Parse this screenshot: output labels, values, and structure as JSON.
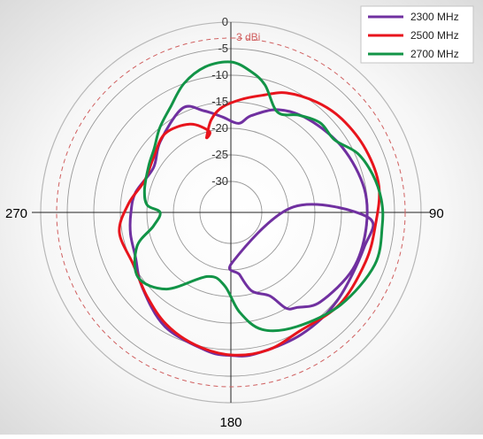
{
  "chart_data": {
    "type": "polar-line",
    "radial_unit": "dBi",
    "radial_range": [
      -30,
      0
    ],
    "radial_ticks": [
      "0",
      "-5",
      "-10",
      "-15",
      "-20",
      "-25",
      "-30"
    ],
    "angle_labels": {
      "top": "",
      "right": "90",
      "bottom": "180",
      "left": "270"
    },
    "reference_circle": {
      "value": -3,
      "label": "-3 dBi",
      "color": "#d06060"
    },
    "legend": {
      "placement": "top-right"
    },
    "grid": true,
    "series": [
      {
        "name": "2300 MHz",
        "color": "#7030a0",
        "points": [
          [
            178,
            -26.5
          ],
          [
            172,
            -24
          ],
          [
            165,
            -20.5
          ],
          [
            155,
            -18.5
          ],
          [
            150,
            -15
          ],
          [
            145,
            -14
          ],
          [
            135,
            -12
          ],
          [
            115,
            -10.5
          ],
          [
            97,
            -10.2
          ],
          [
            80,
            -10.3
          ],
          [
            60,
            -11.5
          ],
          [
            40,
            -13
          ],
          [
            25,
            -14.5
          ],
          [
            12,
            -17.2
          ],
          [
            5,
            -19
          ],
          [
            -5,
            -17.8
          ],
          [
            -15,
            -16
          ],
          [
            -25,
            -14.2
          ],
          [
            -45,
            -17
          ],
          [
            -60,
            -19
          ],
          [
            -78,
            -17.5
          ],
          [
            -90,
            -17
          ],
          [
            -102,
            -16.5
          ],
          [
            -115,
            -16
          ],
          [
            -130,
            -14
          ],
          [
            -150,
            -11
          ],
          [
            -170,
            -9.4
          ],
          [
            -180,
            -8.9
          ],
          [
            170,
            -8.8
          ],
          [
            150,
            -9.3
          ],
          [
            130,
            -9.8
          ],
          [
            105,
            -9.9
          ],
          [
            92,
            -10
          ],
          [
            85,
            -24
          ],
          [
            178,
            -26.5
          ]
        ]
      },
      {
        "name": "2500 MHz",
        "color": "#e8141c",
        "points": [
          [
            -15,
            -20
          ],
          [
            -25,
            -17.5
          ],
          [
            -40,
            -16.5
          ],
          [
            -55,
            -18
          ],
          [
            -70,
            -18.5
          ],
          [
            -85,
            -16.5
          ],
          [
            -100,
            -14.5
          ],
          [
            -118,
            -15
          ],
          [
            -135,
            -13.5
          ],
          [
            -150,
            -11.5
          ],
          [
            -165,
            -10
          ],
          [
            -180,
            -9
          ],
          [
            165,
            -9
          ],
          [
            150,
            -10
          ],
          [
            130,
            -9
          ],
          [
            110,
            -8.8
          ],
          [
            95,
            -8.5
          ],
          [
            80,
            -7.5
          ],
          [
            65,
            -7.8
          ],
          [
            50,
            -8.5
          ],
          [
            38,
            -9.5
          ],
          [
            25,
            -11
          ],
          [
            15,
            -13
          ],
          [
            5,
            -14.5
          ],
          [
            -5,
            -16
          ],
          [
            -12,
            -18
          ],
          [
            -18,
            -21
          ],
          [
            -15,
            -20
          ]
        ]
      },
      {
        "name": "2700 MHz",
        "color": "#129447",
        "points": [
          [
            0,
            -7.5
          ],
          [
            -10,
            -8
          ],
          [
            -20,
            -10
          ],
          [
            -30,
            -13
          ],
          [
            -40,
            -15
          ],
          [
            -50,
            -17
          ],
          [
            -60,
            -18
          ],
          [
            -75,
            -19
          ],
          [
            -85,
            -20
          ],
          [
            -90,
            -22.5
          ],
          [
            -100,
            -21
          ],
          [
            -110,
            -17
          ],
          [
            -125,
            -14.5
          ],
          [
            -140,
            -17
          ],
          [
            -160,
            -23
          ],
          [
            -175,
            -22
          ],
          [
            175,
            -17
          ],
          [
            165,
            -13
          ],
          [
            150,
            -11
          ],
          [
            130,
            -8.8
          ],
          [
            110,
            -7
          ],
          [
            95,
            -7.2
          ],
          [
            85,
            -7.4
          ],
          [
            75,
            -8.2
          ],
          [
            65,
            -9.5
          ],
          [
            55,
            -12
          ],
          [
            45,
            -12
          ],
          [
            35,
            -13.5
          ],
          [
            25,
            -15
          ],
          [
            15,
            -11
          ],
          [
            8,
            -9
          ],
          [
            0,
            -7.5
          ]
        ]
      }
    ]
  }
}
